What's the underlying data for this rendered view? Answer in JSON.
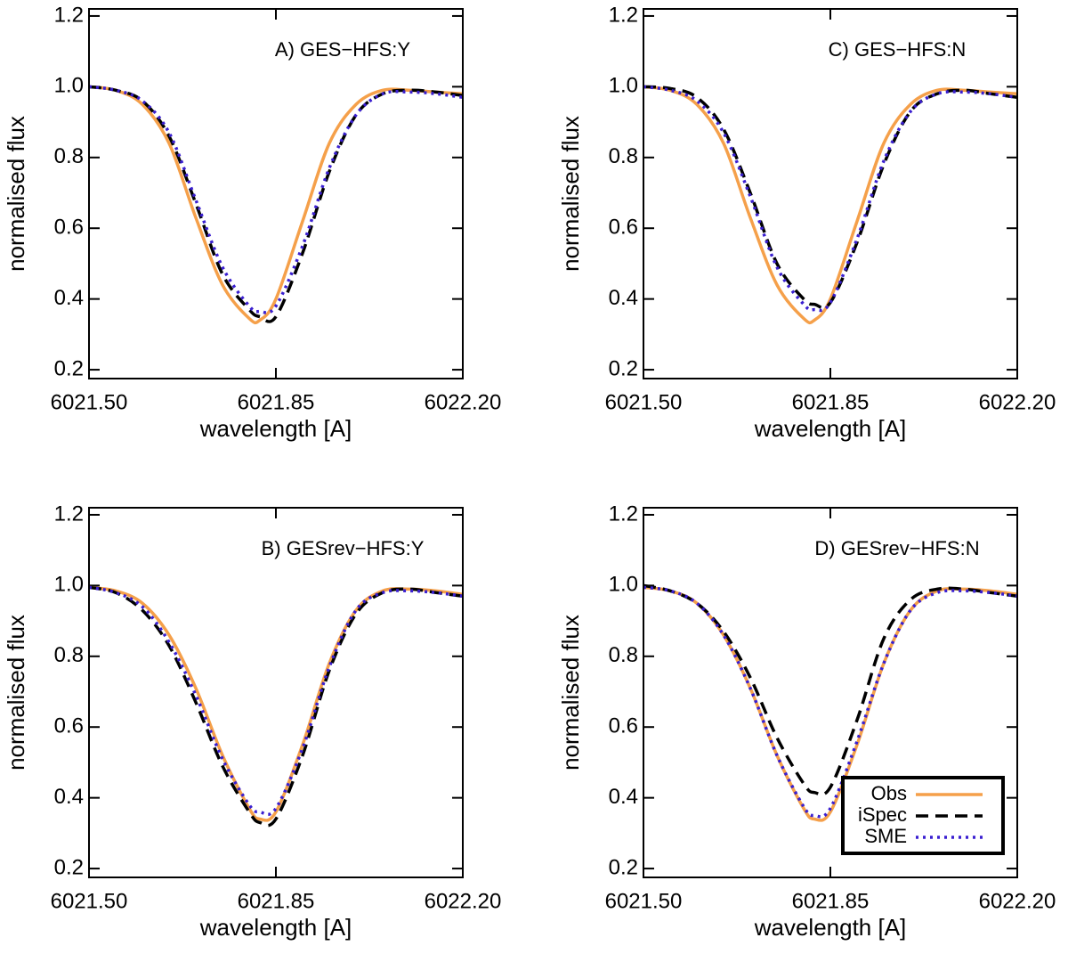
{
  "chart_data": [
    {
      "type": "line",
      "title": "A) GES−HFS:Y",
      "xlabel": "wavelength [A]",
      "ylabel": "normalised flux",
      "x": [
        6021.5,
        6021.55,
        6021.6,
        6021.65,
        6021.7,
        6021.75,
        6021.8,
        6021.82,
        6021.85,
        6021.9,
        6021.95,
        6022.0,
        6022.05,
        6022.1,
        6022.15,
        6022.2
      ],
      "series": [
        {
          "color": "#f5a04a",
          "linestyle": "solid",
          "values": [
            1.0,
            0.99,
            0.95,
            0.84,
            0.63,
            0.44,
            0.345,
            0.34,
            0.4,
            0.62,
            0.84,
            0.95,
            0.99,
            0.99,
            0.985,
            0.98
          ]
        },
        {
          "color": "#000000",
          "linestyle": "dashed",
          "values": [
            1.0,
            0.99,
            0.96,
            0.86,
            0.67,
            0.47,
            0.37,
            0.35,
            0.35,
            0.53,
            0.76,
            0.92,
            0.98,
            0.99,
            0.985,
            0.975
          ]
        },
        {
          "color": "#3a1fd0",
          "linestyle": "dotted",
          "values": [
            1.0,
            0.99,
            0.96,
            0.87,
            0.68,
            0.49,
            0.38,
            0.365,
            0.38,
            0.55,
            0.77,
            0.92,
            0.98,
            0.985,
            0.98,
            0.97
          ]
        }
      ],
      "xlim": [
        6021.5,
        6022.2
      ],
      "xticks": [
        {
          "value": 6021.5,
          "label": "6021.50"
        },
        6021.85,
        {
          "value": 6022.2,
          "label": "6022.20"
        }
      ],
      "ylim": [
        0.175,
        1.22
      ],
      "yticks": [
        0.2,
        0.4,
        0.6,
        0.8,
        {
          "value": 1,
          "label": "1.0"
        },
        1.2
      ]
    },
    {
      "type": "line",
      "title": "C) GES−HFS:N",
      "xlabel": "wavelength [A]",
      "ylabel": "normalised flux",
      "x": [
        6021.5,
        6021.55,
        6021.6,
        6021.65,
        6021.7,
        6021.75,
        6021.8,
        6021.82,
        6021.85,
        6021.9,
        6021.95,
        6022.0,
        6022.05,
        6022.1,
        6022.15,
        6022.2
      ],
      "series": [
        {
          "color": "#f5a04a",
          "linestyle": "solid",
          "values": [
            1.0,
            0.99,
            0.95,
            0.84,
            0.63,
            0.44,
            0.345,
            0.34,
            0.4,
            0.62,
            0.84,
            0.95,
            0.99,
            0.99,
            0.985,
            0.98
          ]
        },
        {
          "color": "#000000",
          "linestyle": "dashed",
          "values": [
            1.0,
            0.995,
            0.97,
            0.88,
            0.7,
            0.5,
            0.4,
            0.385,
            0.39,
            0.56,
            0.78,
            0.93,
            0.98,
            0.99,
            0.98,
            0.97
          ]
        },
        {
          "color": "#3a1fd0",
          "linestyle": "dotted",
          "values": [
            1.0,
            0.99,
            0.96,
            0.87,
            0.69,
            0.49,
            0.385,
            0.37,
            0.39,
            0.57,
            0.79,
            0.93,
            0.98,
            0.985,
            0.98,
            0.97
          ]
        }
      ],
      "xlim": [
        6021.5,
        6022.2
      ],
      "xticks": [
        {
          "value": 6021.5,
          "label": "6021.50"
        },
        6021.85,
        {
          "value": 6022.2,
          "label": "6022.20"
        }
      ],
      "ylim": [
        0.175,
        1.22
      ],
      "yticks": [
        0.2,
        0.4,
        0.6,
        0.8,
        {
          "value": 1,
          "label": "1.0"
        },
        1.2
      ]
    },
    {
      "type": "line",
      "title": "B) GESrev−HFS:Y",
      "xlabel": "wavelength [A]",
      "ylabel": "normalised flux",
      "x": [
        6021.5,
        6021.55,
        6021.6,
        6021.65,
        6021.7,
        6021.75,
        6021.8,
        6021.82,
        6021.85,
        6021.9,
        6021.95,
        6022.0,
        6022.05,
        6022.1,
        6022.15,
        6022.2
      ],
      "series": [
        {
          "color": "#f5a04a",
          "linestyle": "solid",
          "values": [
            0.995,
            0.985,
            0.95,
            0.86,
            0.71,
            0.52,
            0.37,
            0.34,
            0.36,
            0.55,
            0.78,
            0.93,
            0.985,
            0.99,
            0.985,
            0.975
          ]
        },
        {
          "color": "#000000",
          "linestyle": "dashed",
          "values": [
            0.995,
            0.98,
            0.93,
            0.83,
            0.67,
            0.49,
            0.36,
            0.33,
            0.34,
            0.52,
            0.76,
            0.92,
            0.98,
            0.99,
            0.98,
            0.97
          ]
        },
        {
          "color": "#3a1fd0",
          "linestyle": "dotted",
          "values": [
            0.995,
            0.98,
            0.94,
            0.84,
            0.69,
            0.51,
            0.38,
            0.36,
            0.37,
            0.54,
            0.77,
            0.93,
            0.98,
            0.985,
            0.98,
            0.97
          ]
        }
      ],
      "xlim": [
        6021.5,
        6022.2
      ],
      "xticks": [
        {
          "value": 6021.5,
          "label": "6021.50"
        },
        6021.85,
        {
          "value": 6022.2,
          "label": "6022.20"
        }
      ],
      "ylim": [
        0.175,
        1.22
      ],
      "yticks": [
        0.2,
        0.4,
        0.6,
        0.8,
        {
          "value": 1,
          "label": "1.0"
        },
        1.2
      ]
    },
    {
      "type": "line",
      "title": "D) GESrev−HFS:N",
      "xlabel": "wavelength [A]",
      "ylabel": "normalised flux",
      "legend": "lower right",
      "x": [
        6021.5,
        6021.55,
        6021.6,
        6021.65,
        6021.7,
        6021.75,
        6021.8,
        6021.82,
        6021.85,
        6021.9,
        6021.95,
        6022.0,
        6022.05,
        6022.1,
        6022.15,
        6022.2
      ],
      "series": [
        {
          "name": "Obs",
          "color": "#f5a04a",
          "linestyle": "solid",
          "values": [
            0.995,
            0.985,
            0.95,
            0.86,
            0.71,
            0.52,
            0.37,
            0.34,
            0.36,
            0.55,
            0.78,
            0.93,
            0.985,
            0.99,
            0.985,
            0.975
          ]
        },
        {
          "name": "iSpec",
          "color": "#000000",
          "linestyle": "dashed",
          "values": [
            1.0,
            0.985,
            0.95,
            0.87,
            0.74,
            0.57,
            0.44,
            0.415,
            0.43,
            0.62,
            0.85,
            0.96,
            0.99,
            0.99,
            0.98,
            0.97
          ]
        },
        {
          "name": "SME",
          "color": "#3a1fd0",
          "linestyle": "dotted",
          "values": [
            0.995,
            0.985,
            0.95,
            0.86,
            0.71,
            0.52,
            0.375,
            0.35,
            0.37,
            0.56,
            0.78,
            0.93,
            0.98,
            0.985,
            0.98,
            0.97
          ]
        }
      ],
      "xlim": [
        6021.5,
        6022.2
      ],
      "xticks": [
        {
          "value": 6021.5,
          "label": "6021.50"
        },
        6021.85,
        {
          "value": 6022.2,
          "label": "6022.20"
        }
      ],
      "ylim": [
        0.175,
        1.22
      ],
      "yticks": [
        0.2,
        0.4,
        0.6,
        0.8,
        {
          "value": 1,
          "label": "1.0"
        },
        1.2
      ]
    }
  ]
}
